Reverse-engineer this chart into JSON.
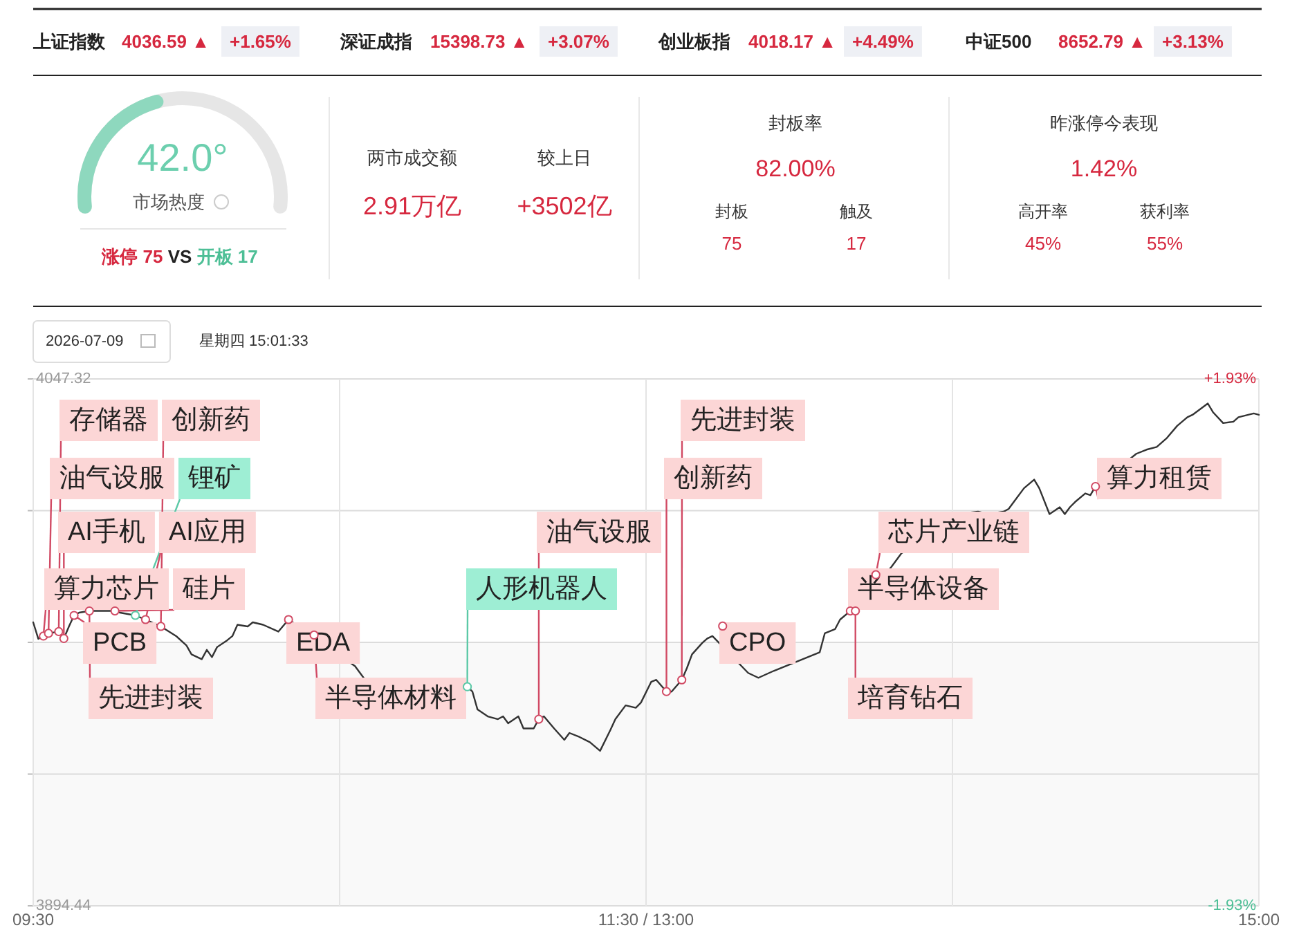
{
  "chart_data": [
    {
      "type": "other",
      "annotations": [
        "上证指数",
        "4036.59 ▲",
        "+1.65%",
        "深证成指",
        "15398.73 ▲",
        "+3.07%",
        "创业板指",
        "4018.17 ▲",
        "+4.49%",
        "中证500",
        "8652.79 ▲",
        "+3.13%"
      ]
    },
    {
      "type": "other",
      "title": "市场热度",
      "values": [
        42.0
      ],
      "value_labels": [
        "42.0°"
      ],
      "annotations": [
        "涨停 75",
        "VS",
        "开板 17"
      ]
    },
    {
      "type": "other",
      "annotations": [
        "两市成交额",
        "较上日",
        "2.91万亿",
        "+3502亿",
        "封板率",
        "82.00%",
        "封板",
        "触及",
        "75",
        "17",
        "昨涨停今表现",
        "1.42%",
        "高开率",
        "获利率",
        "45%",
        "55%"
      ]
    },
    {
      "type": "line",
      "grid": true,
      "categories": [
        "09:30",
        null,
        null,
        null,
        null,
        null,
        null,
        null,
        null,
        null,
        null,
        null,
        null,
        null,
        null,
        null,
        null,
        null,
        null,
        null,
        null,
        null,
        null,
        null,
        null,
        null,
        null,
        null,
        null,
        null,
        null,
        null,
        null,
        null,
        null,
        null,
        null,
        null,
        null,
        null,
        null,
        null,
        null,
        null,
        null,
        null,
        null,
        null,
        null,
        null,
        null,
        null,
        null,
        null,
        null,
        null,
        null,
        null,
        null,
        null,
        null,
        null,
        null,
        null,
        null,
        null,
        null,
        null,
        null,
        null,
        null,
        null,
        null,
        null,
        null,
        null,
        null,
        null,
        null,
        null,
        null,
        null,
        null,
        null,
        null,
        null,
        null,
        null,
        null,
        null,
        null,
        null,
        null,
        null,
        null,
        null,
        null,
        null,
        null,
        null,
        null,
        null,
        null,
        null,
        null,
        null,
        null,
        null,
        null,
        null,
        null,
        null,
        null,
        null,
        null,
        null,
        null,
        null,
        null,
        null,
        "11:30 / 13:00",
        null,
        null,
        null,
        null,
        null,
        null,
        null,
        null,
        null,
        null,
        null,
        null,
        null,
        null,
        null,
        null,
        null,
        null,
        null,
        null,
        null,
        null,
        null,
        null,
        null,
        null,
        null,
        null,
        null,
        null,
        null,
        null,
        null,
        null,
        null,
        null,
        null,
        null,
        null,
        null,
        null,
        null,
        null,
        null,
        null,
        null,
        null,
        null,
        null,
        null,
        null,
        null,
        null,
        null,
        null,
        null,
        null,
        null,
        null,
        null,
        null,
        null,
        null,
        null,
        null,
        null,
        null,
        null,
        null,
        null,
        null,
        null,
        null,
        null,
        null,
        null,
        null,
        null,
        null,
        null,
        null,
        null,
        null,
        null,
        null,
        null,
        null,
        null,
        null,
        null,
        null,
        null,
        null,
        null,
        null,
        null,
        null,
        null,
        null,
        null,
        null,
        null,
        null,
        null,
        null,
        null,
        null,
        null,
        null,
        null,
        null,
        null,
        null,
        null,
        null,
        null,
        null,
        null,
        null,
        "15:00"
      ],
      "ylim": [
        3894.44,
        4047.32
      ],
      "yticks": [
        {
          "value": 3894.44,
          "label": "3894.44"
        },
        {
          "value": 3932.66,
          "label": null
        },
        {
          "value": 3970.88,
          "label": null
        },
        {
          "value": 4009.1,
          "label": null
        },
        {
          "value": 4047.32,
          "label": "4047.32"
        }
      ],
      "y2lim": [
        -1.93,
        1.93
      ],
      "y2ticks": [
        {
          "value": -1.93,
          "label": "-1.93%"
        },
        {
          "value": 1.93,
          "label": "+1.93%"
        }
      ],
      "bands": [
        {
          "axis": "y",
          "from": 3894.44,
          "to": 3970.88,
          "color": "#f9f9f9"
        }
      ],
      "series": [
        {
          "type": "line",
          "color": "#333333",
          "values": [
            3976.7,
            3971.9,
            3972.7,
            3973.5,
            null,
            3974.0,
            3972.0,
            3975.5,
            3978.7,
            3979.5,
            null,
            3980.0,
            null,
            3980.0,
            null,
            null,
            3980.0,
            3979.5,
            null,
            null,
            3978.7,
            null,
            3977.5,
            null,
            null,
            3975.5,
            null,
            null,
            3972.7,
            null,
            3970.0,
            3967.4,
            null,
            3966.0,
            3968.7,
            3966.6,
            3969.5,
            null,
            3971.5,
            3972.7,
            3976.0,
            null,
            3975.5,
            3976.7,
            null,
            3976.0,
            null,
            null,
            3974.0,
            null,
            3977.5,
            null,
            null,
            null,
            null,
            null,
            null,
            null,
            null,
            null,
            null,
            null,
            null,
            3964.0,
            null,
            3960.0,
            null,
            null,
            null,
            null,
            null,
            null,
            null,
            null,
            null,
            null,
            null,
            null,
            null,
            null,
            null,
            null,
            null,
            null,
            null,
            3958.0,
            3956.6,
            3951.4,
            null,
            3949.4,
            null,
            3948.6,
            3949.4,
            3947.4,
            null,
            3949.4,
            3945.9,
            null,
            3945.9,
            3948.6,
            3949.4,
            null,
            3945.9,
            null,
            3942.6,
            3944.6,
            null,
            3943.4,
            null,
            3941.9,
            null,
            3939.4,
            null,
            3945.4,
            3948.6,
            null,
            3952.6,
            null,
            3951.9,
            3953.4,
            null,
            3959.4,
            3960.0,
            null,
            3956.6,
            3956.6,
            null,
            3960.0,
            3963.4,
            3967.4,
            null,
            3970.7,
            3972.0,
            3972.7,
            null,
            null,
            null,
            null,
            null,
            null,
            3962.0,
            null,
            3960.6,
            null,
            null,
            3962.6,
            null,
            null,
            null,
            null,
            null,
            null,
            null,
            null,
            3968.0,
            3973.5,
            null,
            3974.7,
            3977.5,
            null,
            3980.0,
            null,
            null,
            null,
            null,
            null,
            null,
            null,
            3992.7,
            null,
            3996.7,
            null,
            null,
            null,
            null,
            null,
            null,
            null,
            null,
            null,
            null,
            4008.1,
            null,
            null,
            null,
            4008.8,
            null,
            4008.1,
            null,
            null,
            4008.8,
            4009.6,
            4011.6,
            null,
            4015.6,
            null,
            4018.1,
            4015.6,
            null,
            4008.1,
            null,
            4010.1,
            4008.1,
            4010.1,
            4011.6,
            null,
            4014.1,
            4013.6,
            4016.1,
            null,
            null,
            null,
            null,
            null,
            null,
            null,
            4025.6,
            null,
            4026.8,
            null,
            4027.6,
            null,
            4030.2,
            null,
            4033.7,
            null,
            4036.2,
            4036.9,
            null,
            null,
            4040.2,
            4037.7,
            null,
            4034.5,
            null,
            4034.9,
            4036.2,
            null,
            null,
            4037.3,
            4036.9
          ]
        },
        {
          "type": "scatter",
          "color": "#d14a64",
          "value_labels": [
            null,
            null,
            "算力芯片",
            "油气设服",
            null,
            "存储器",
            "AI手机",
            null,
            "PCB",
            null,
            null,
            "先进封装",
            null,
            null,
            null,
            null,
            "硅片",
            null,
            null,
            null,
            null,
            null,
            "AI应用",
            null,
            null,
            "创新药",
            null,
            null,
            null,
            null,
            null,
            null,
            null,
            null,
            null,
            null,
            null,
            null,
            null,
            null,
            null,
            null,
            null,
            null,
            null,
            null,
            null,
            null,
            null,
            null,
            "EDA",
            null,
            null,
            null,
            null,
            "半导体材料",
            null,
            null,
            null,
            null,
            null,
            null,
            null,
            null,
            null,
            null,
            null,
            null,
            null,
            null,
            null,
            null,
            null,
            null,
            null,
            null,
            null,
            null,
            null,
            null,
            null,
            null,
            null,
            null,
            null,
            null,
            null,
            null,
            null,
            null,
            null,
            null,
            null,
            null,
            null,
            null,
            null,
            null,
            null,
            "油气设服",
            null,
            null,
            null,
            null,
            null,
            null,
            null,
            null,
            null,
            null,
            null,
            null,
            null,
            null,
            null,
            null,
            null,
            null,
            null,
            null,
            null,
            null,
            null,
            null,
            "创新药",
            null,
            null,
            "先进封装",
            null,
            null,
            null,
            null,
            null,
            null,
            null,
            "CPO",
            null,
            null,
            null,
            null,
            null,
            null,
            null,
            null,
            null,
            null,
            null,
            null,
            null,
            null,
            null,
            null,
            null,
            null,
            null,
            null,
            null,
            null,
            null,
            null,
            "半导体设备",
            "培育钻石",
            null,
            null,
            null,
            "芯片产业链",
            null,
            null,
            null,
            null,
            null,
            null,
            null,
            null,
            null,
            null,
            null,
            null,
            null,
            null,
            null,
            null,
            null,
            null,
            null,
            null,
            null,
            null,
            null,
            null,
            null,
            null,
            null,
            null,
            null,
            null,
            null,
            null,
            null,
            null,
            null,
            null,
            null,
            null,
            null,
            null,
            null,
            null,
            "算力租赁",
            null,
            null,
            null,
            null,
            null,
            null,
            null,
            null,
            null,
            null,
            null,
            null,
            null,
            null,
            null,
            null,
            null,
            null,
            null,
            null,
            null,
            null,
            null,
            null,
            null,
            null,
            null,
            null,
            null,
            null,
            null,
            null
          ],
          "values": [
            null,
            null,
            3972.7,
            3973.5,
            null,
            3974.0,
            3972.0,
            null,
            3978.7,
            null,
            null,
            3980.0,
            null,
            null,
            null,
            null,
            3980.0,
            null,
            null,
            null,
            null,
            null,
            3977.5,
            null,
            null,
            3975.5,
            null,
            null,
            null,
            null,
            null,
            null,
            null,
            null,
            null,
            null,
            null,
            null,
            null,
            null,
            null,
            null,
            null,
            null,
            null,
            null,
            null,
            null,
            null,
            null,
            3977.5,
            null,
            null,
            null,
            null,
            3973.0,
            null,
            null,
            null,
            null,
            null,
            null,
            null,
            null,
            null,
            null,
            null,
            null,
            null,
            null,
            null,
            null,
            null,
            null,
            null,
            null,
            null,
            null,
            null,
            null,
            null,
            null,
            null,
            null,
            null,
            null,
            null,
            null,
            null,
            null,
            null,
            null,
            null,
            null,
            null,
            null,
            null,
            null,
            null,
            3948.6,
            null,
            null,
            null,
            null,
            null,
            null,
            null,
            null,
            null,
            null,
            null,
            null,
            null,
            null,
            null,
            null,
            null,
            null,
            null,
            null,
            null,
            null,
            null,
            null,
            3956.6,
            null,
            null,
            3960.0,
            null,
            null,
            null,
            null,
            null,
            null,
            null,
            3975.6,
            null,
            null,
            null,
            null,
            null,
            null,
            null,
            null,
            null,
            null,
            null,
            null,
            null,
            null,
            null,
            null,
            null,
            null,
            null,
            null,
            null,
            null,
            null,
            null,
            3980.0,
            3980.0,
            null,
            null,
            null,
            3990.5,
            null,
            null,
            null,
            null,
            null,
            null,
            null,
            null,
            null,
            null,
            null,
            null,
            null,
            null,
            null,
            null,
            null,
            null,
            null,
            null,
            null,
            null,
            null,
            null,
            null,
            null,
            null,
            null,
            null,
            null,
            null,
            null,
            null,
            null,
            null,
            null,
            null,
            null,
            null,
            null,
            null,
            null,
            4016.1,
            null,
            null,
            null,
            null,
            null,
            null,
            null,
            null,
            null,
            null,
            null,
            null,
            null,
            null,
            null,
            null,
            null,
            null,
            null,
            null,
            null,
            null,
            null,
            null,
            null,
            null,
            null,
            null,
            null,
            null,
            null,
            null
          ]
        },
        {
          "type": "scatter",
          "color": "#5cc9a7",
          "value_labels": [
            null,
            null,
            null,
            null,
            null,
            null,
            null,
            null,
            null,
            null,
            null,
            null,
            null,
            null,
            null,
            null,
            null,
            null,
            null,
            null,
            "锂矿",
            null,
            null,
            null,
            null,
            null,
            null,
            null,
            null,
            null,
            null,
            null,
            null,
            null,
            null,
            null,
            null,
            null,
            null,
            null,
            null,
            null,
            null,
            null,
            null,
            null,
            null,
            null,
            null,
            null,
            null,
            null,
            null,
            null,
            null,
            null,
            null,
            null,
            null,
            null,
            null,
            null,
            null,
            null,
            null,
            null,
            null,
            null,
            null,
            null,
            null,
            null,
            null,
            null,
            null,
            null,
            null,
            null,
            null,
            null,
            null,
            null,
            null,
            null,
            null,
            "人形机器人",
            null,
            null,
            null,
            null,
            null,
            null,
            null,
            null,
            null,
            null,
            null,
            null,
            null,
            null,
            null,
            null,
            null,
            null,
            null,
            null,
            null,
            null,
            null,
            null,
            null,
            null,
            null,
            null,
            null,
            null,
            null,
            null,
            null,
            null,
            null,
            null,
            null,
            null,
            null,
            null,
            null,
            null,
            null,
            null,
            null,
            null,
            null,
            null,
            null,
            null,
            null,
            null,
            null,
            null,
            null,
            null,
            null,
            null,
            null,
            null,
            null,
            null,
            null,
            null,
            null,
            null,
            null,
            null,
            null,
            null,
            null,
            null,
            null,
            null,
            null,
            null,
            null,
            null,
            null,
            null,
            null,
            null,
            null,
            null,
            null,
            null,
            null,
            null,
            null,
            null,
            null,
            null,
            null,
            null,
            null,
            null,
            null,
            null,
            null,
            null,
            null,
            null,
            null,
            null,
            null,
            null,
            null,
            null,
            null,
            null,
            null,
            null,
            null,
            null,
            null,
            null,
            null,
            null,
            null,
            null,
            null,
            null,
            null,
            null,
            null,
            null,
            null,
            null,
            null,
            null,
            null,
            null,
            null,
            null,
            null,
            null,
            null,
            null,
            null,
            null,
            null,
            null,
            null,
            null,
            null,
            null,
            null,
            null,
            null,
            null,
            null,
            null,
            null,
            null,
            null
          ],
          "values": [
            null,
            null,
            null,
            null,
            null,
            null,
            null,
            null,
            null,
            null,
            null,
            null,
            null,
            null,
            null,
            null,
            null,
            null,
            null,
            null,
            3978.7,
            null,
            null,
            null,
            null,
            null,
            null,
            null,
            null,
            null,
            null,
            null,
            null,
            null,
            null,
            null,
            null,
            null,
            null,
            null,
            null,
            null,
            null,
            null,
            null,
            null,
            null,
            null,
            null,
            null,
            null,
            null,
            null,
            null,
            null,
            null,
            null,
            null,
            null,
            null,
            null,
            null,
            null,
            null,
            null,
            null,
            null,
            null,
            null,
            null,
            null,
            null,
            null,
            null,
            null,
            null,
            null,
            null,
            null,
            null,
            null,
            null,
            null,
            null,
            null,
            3958.0,
            null,
            null,
            null,
            null,
            null,
            null,
            null,
            null,
            null,
            null,
            null,
            null,
            null,
            null,
            null,
            null,
            null,
            null,
            null,
            null,
            null,
            null,
            null,
            null,
            null,
            null,
            null,
            null,
            null,
            null,
            null,
            null,
            null,
            null,
            null,
            null,
            null,
            null,
            null,
            null,
            null,
            null,
            null,
            null,
            null,
            null,
            null,
            null,
            null,
            null,
            null,
            null,
            null,
            null,
            null,
            null,
            null,
            null,
            null,
            null,
            null,
            null,
            null,
            null,
            null,
            null,
            null,
            null,
            null,
            null,
            null,
            null,
            null,
            null,
            null,
            null,
            null,
            null,
            null,
            null,
            null,
            null,
            null,
            null,
            null,
            null,
            null,
            null,
            null,
            null,
            null,
            null,
            null,
            null,
            null,
            null,
            null,
            null,
            null,
            null,
            null,
            null,
            null,
            null,
            null,
            null,
            null,
            null,
            null,
            null,
            null,
            null,
            null,
            null,
            null,
            null,
            null,
            null,
            null,
            null,
            null,
            null,
            null,
            null,
            null,
            null,
            null,
            null,
            null,
            null,
            null,
            null,
            null,
            null,
            null,
            null,
            null,
            null,
            null,
            null,
            null,
            null,
            null,
            null,
            null,
            null,
            null,
            null,
            null,
            null,
            null,
            null,
            null,
            null,
            null
          ]
        }
      ],
      "annotations": [
        "2026-07-09",
        "星期四 15:01:33"
      ]
    }
  ]
}
